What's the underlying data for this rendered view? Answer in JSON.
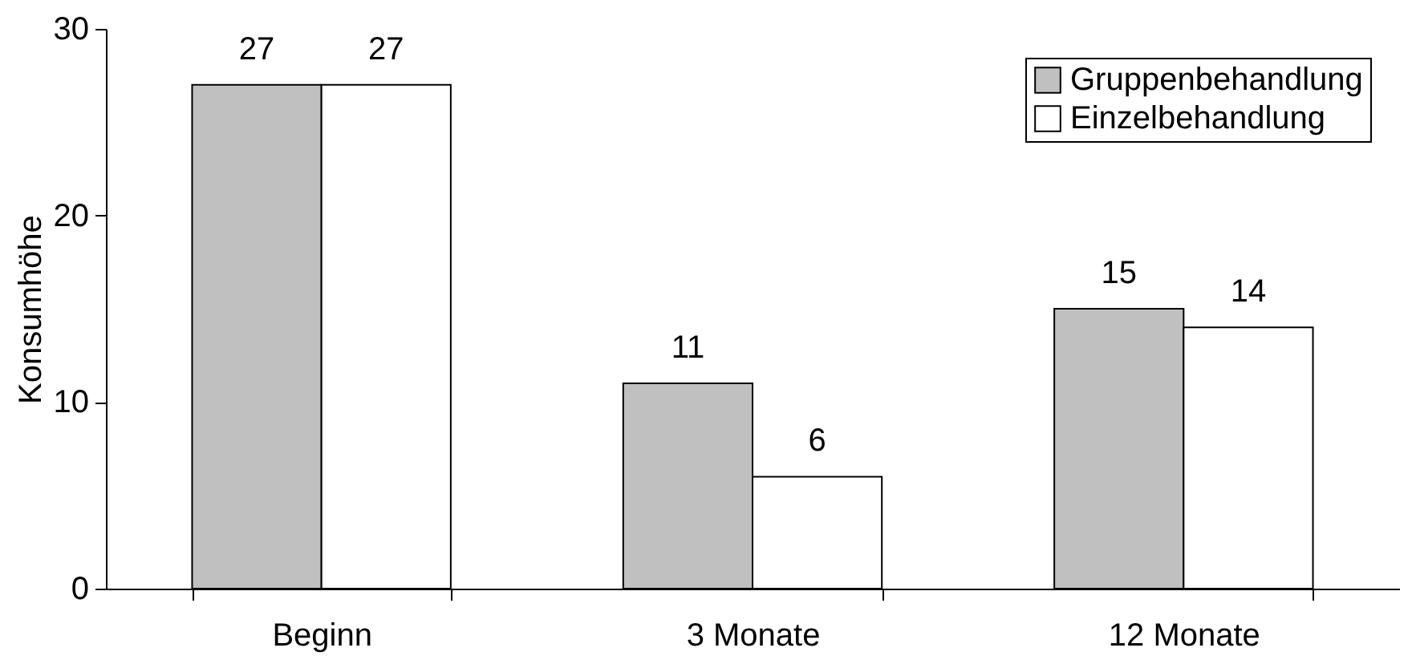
{
  "chart_data": {
    "type": "bar",
    "ylabel": "Konsumhöhe",
    "categories": [
      "Beginn",
      "3 Monate",
      "12 Monate"
    ],
    "series": [
      {
        "name": "Gruppenbehandlung",
        "color": "#c0c0c0",
        "values": [
          27,
          11,
          15
        ]
      },
      {
        "name": "Einzelbehandlung",
        "color": "#ffffff",
        "values": [
          27,
          6,
          14
        ]
      }
    ],
    "ylim": [
      0,
      30
    ],
    "yticks": [
      0,
      10,
      20,
      30
    ],
    "grid": false,
    "legend": "top right",
    "data_labels": true
  }
}
